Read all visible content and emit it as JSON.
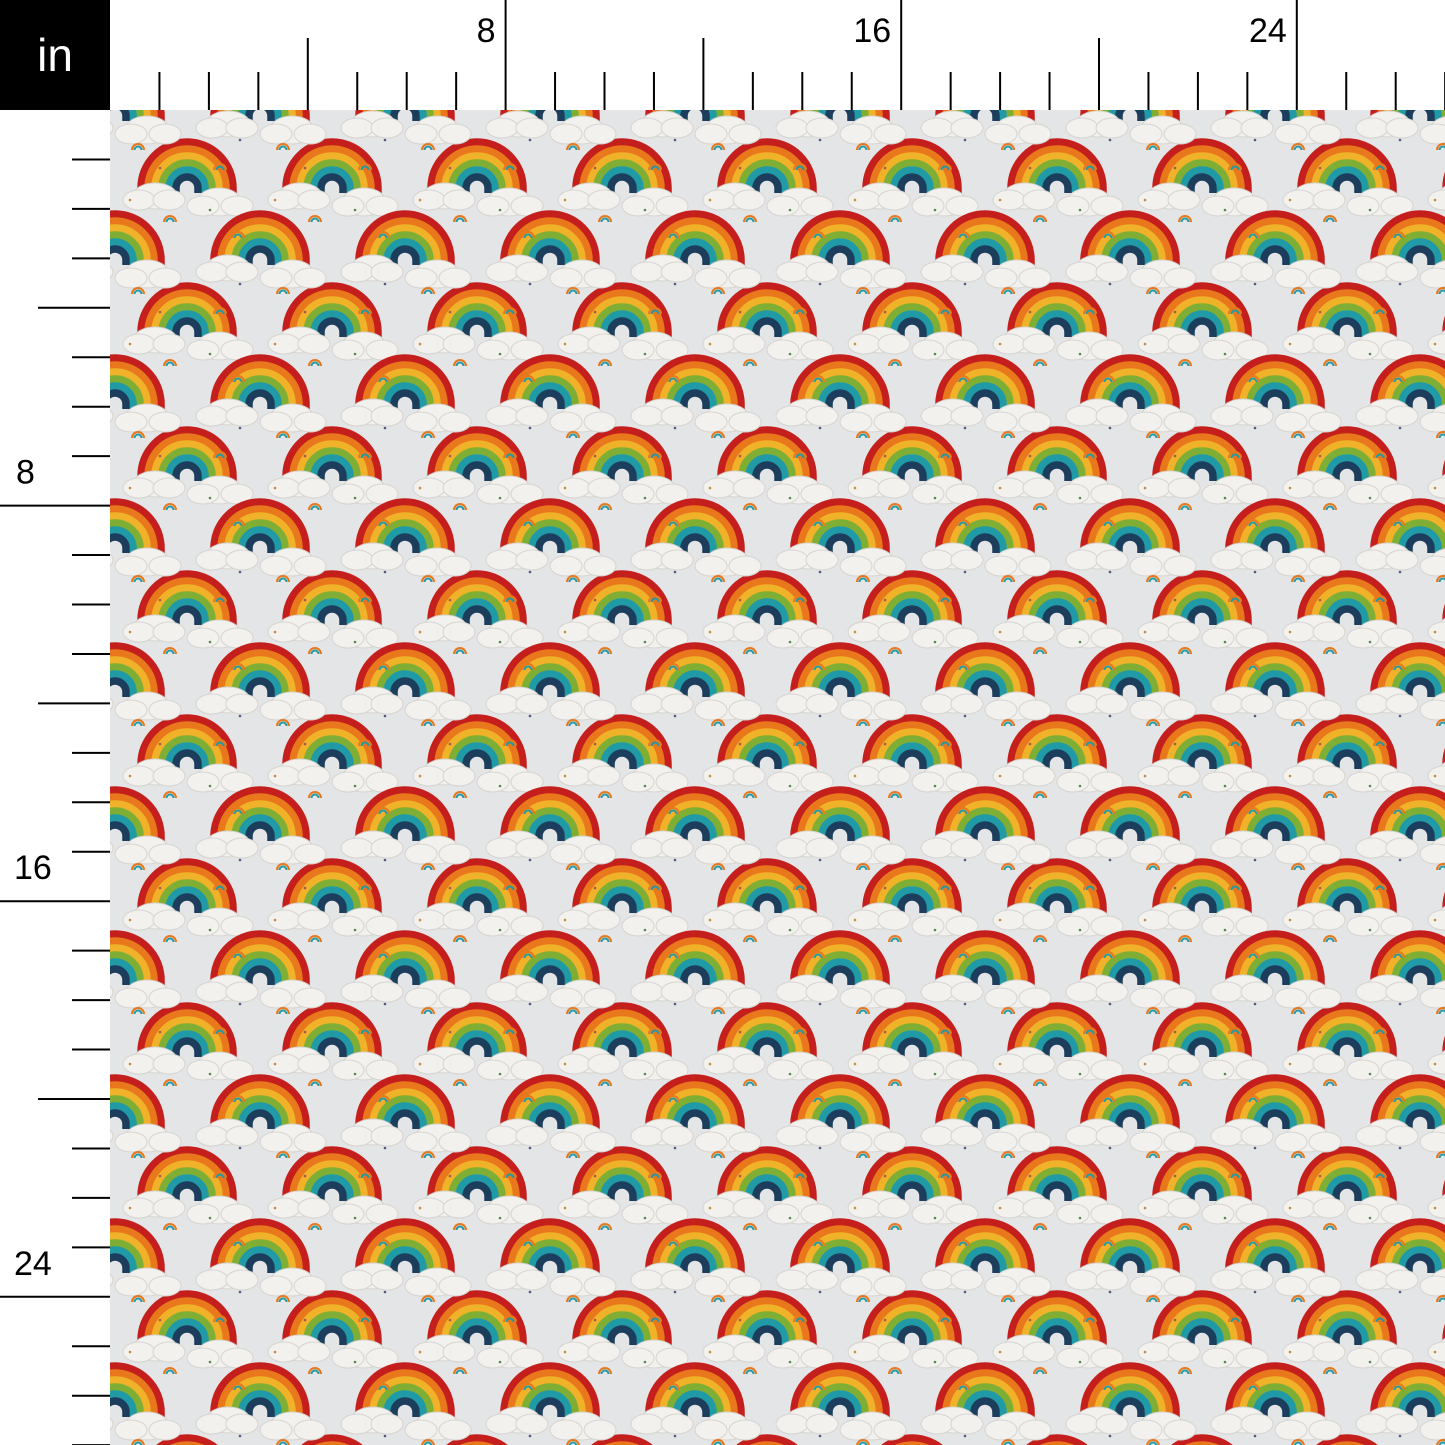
{
  "ruler": {
    "unit": "in",
    "labels": [
      "8",
      "16",
      "24"
    ],
    "label_values": [
      8,
      16,
      24
    ],
    "max_inches": 27
  },
  "fabric": {
    "background": "#e4e5e6",
    "rainbow_colors": [
      "#c41f1c",
      "#e9771c",
      "#f0b229",
      "#7fae35",
      "#1f9aa6",
      "#1c3d5c"
    ],
    "cloud_color": "#f2f1ee"
  }
}
